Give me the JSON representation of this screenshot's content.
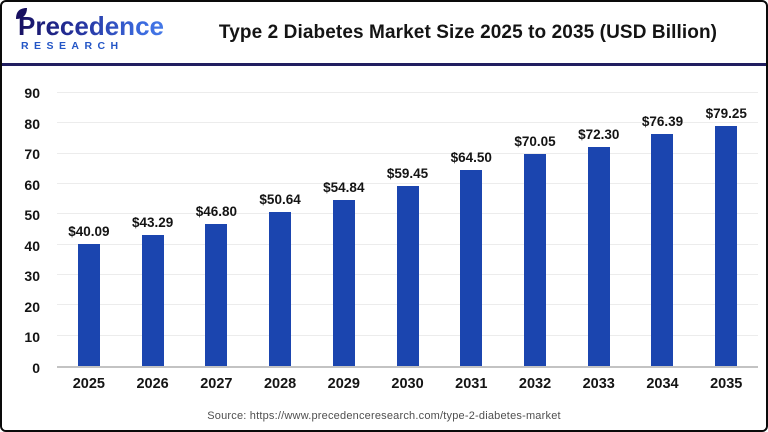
{
  "header": {
    "logo": {
      "line1": "Precedence",
      "line2": "RESEARCH"
    },
    "title": "Type 2 Diabetes Market Size 2025 to 2035 (USD Billion)"
  },
  "chart_data": {
    "type": "bar",
    "title": "Type 2 Diabetes Market Size 2025 to 2035 (USD Billion)",
    "categories": [
      "2025",
      "2026",
      "2027",
      "2028",
      "2029",
      "2030",
      "2031",
      "2032",
      "2033",
      "2034",
      "2035"
    ],
    "values": [
      40.09,
      43.29,
      46.8,
      50.64,
      54.84,
      59.45,
      64.5,
      70.05,
      72.3,
      76.39,
      79.25
    ],
    "bar_labels": [
      "$40.09",
      "$43.29",
      "$46.80",
      "$50.64",
      "$54.84",
      "$59.45",
      "$64.50",
      "$70.05",
      "$72.30",
      "$76.39",
      "$79.25"
    ],
    "xlabel": "",
    "ylabel": "",
    "ylim": [
      0,
      90
    ],
    "yticks": [
      0,
      10,
      20,
      30,
      40,
      50,
      60,
      70,
      80,
      90
    ],
    "grid": true,
    "legend": false,
    "bar_color": "#1b45af"
  },
  "footer": {
    "source": "Source: https://www.precedenceresearch.com/type-2-diabetes-market"
  },
  "colors": {
    "bar": "#1b45af",
    "divider": "#211e60",
    "gridline": "#ececec",
    "axis_line": "#c3c3c3",
    "title_text": "#141414",
    "source_text": "#4f4f4f",
    "logo_dark": "#171060",
    "logo_light": "#4e87f0",
    "logo_research": "#2456c6",
    "frame_border": "#0a0a0a"
  }
}
